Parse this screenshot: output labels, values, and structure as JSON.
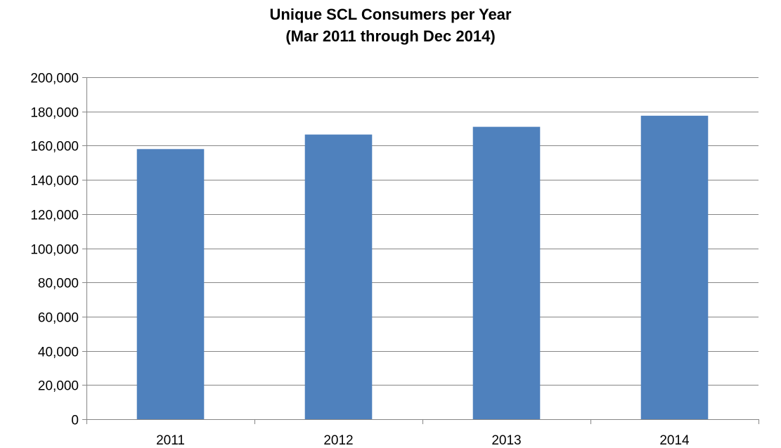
{
  "chart_data": {
    "type": "bar",
    "title": "Unique SCL Consumers per Year",
    "subtitle": "(Mar 2011 through Dec 2014)",
    "xlabel": "",
    "ylabel": "",
    "categories": [
      "2011",
      "2012",
      "2013",
      "2014"
    ],
    "values": [
      158000,
      166500,
      171000,
      177500
    ],
    "ylim": [
      0,
      200000
    ],
    "yticks": [
      0,
      20000,
      40000,
      60000,
      80000,
      100000,
      120000,
      140000,
      160000,
      180000,
      200000
    ],
    "ytick_labels": [
      "0",
      "20,000",
      "40,000",
      "60,000",
      "80,000",
      "100,000",
      "120,000",
      "140,000",
      "160,000",
      "180,000",
      "200,000"
    ],
    "grid": true,
    "legend": "none",
    "colors": {
      "bar": "#4F81BD",
      "grid": "#868686",
      "axis": "#868686"
    }
  }
}
